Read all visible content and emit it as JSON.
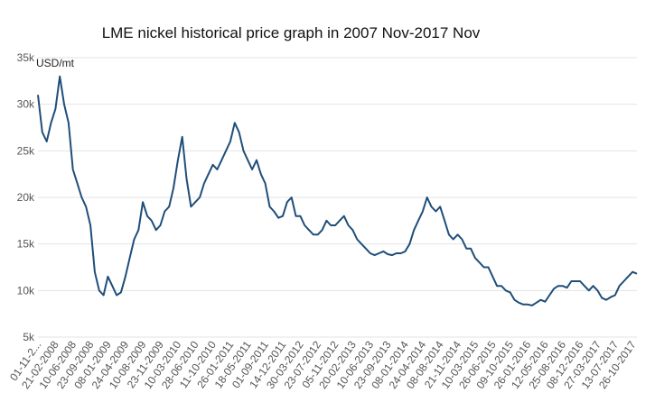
{
  "chart_data": {
    "type": "line",
    "title": "LME nickel historical price graph in 2007 Nov-2017 Nov",
    "y_label": "USD/mt",
    "categories": [
      "01-11-2...",
      null,
      null,
      null,
      "21-02-2008",
      null,
      null,
      null,
      "10-06-2008",
      null,
      null,
      null,
      "23-09-2008",
      null,
      null,
      null,
      "08-01-2009",
      null,
      null,
      null,
      "24-04-2009",
      null,
      null,
      null,
      "10-08-2009",
      null,
      null,
      null,
      "23-11-2009",
      null,
      null,
      null,
      "10-03-2010",
      null,
      null,
      null,
      "28-06-2010",
      null,
      null,
      null,
      "11-10-2010",
      null,
      null,
      null,
      "26-01-2011",
      null,
      null,
      null,
      "18-05-2011",
      null,
      null,
      null,
      "01-09-2011",
      null,
      null,
      null,
      "14-12-2011",
      null,
      null,
      null,
      "30-03-2012",
      null,
      null,
      null,
      "23-07-2012",
      null,
      null,
      null,
      "05-11-2012",
      null,
      null,
      null,
      "20-02-2013",
      null,
      null,
      null,
      "10-06-2013",
      null,
      null,
      null,
      "23-09-2013",
      null,
      null,
      null,
      "08-01-2014",
      null,
      null,
      null,
      "24-04-2014",
      null,
      null,
      null,
      "08-08-2014",
      null,
      null,
      null,
      "21-11-2014",
      null,
      null,
      null,
      "10-03-2015",
      null,
      null,
      null,
      "26-06-2015",
      null,
      null,
      null,
      "09-10-2015",
      null,
      null,
      null,
      "26-01-2016",
      null,
      null,
      null,
      "12-05-2016",
      null,
      null,
      null,
      "25-08-2016",
      null,
      null,
      null,
      "08-12-2016",
      null,
      null,
      null,
      "27-03-2017",
      null,
      null,
      null,
      "13-07-2017",
      null,
      null,
      null,
      "26-10-2017",
      null
    ],
    "series": [
      {
        "name": "Nickel",
        "color": "#1f4e79",
        "values": [
          31000,
          27000,
          26000,
          28000,
          29500,
          33000,
          30000,
          28000,
          23000,
          21500,
          20000,
          19000,
          17000,
          12000,
          10000,
          9500,
          11500,
          10500,
          9500,
          9800,
          11500,
          13500,
          15500,
          16500,
          19500,
          18000,
          17500,
          16500,
          17000,
          18500,
          19000,
          21000,
          24000,
          26500,
          22000,
          19000,
          19500,
          20000,
          21500,
          22500,
          23500,
          23000,
          24000,
          25000,
          26000,
          28000,
          27000,
          25000,
          24000,
          23000,
          24000,
          22500,
          21500,
          19000,
          18500,
          17800,
          18000,
          19500,
          20000,
          18000,
          18000,
          17000,
          16500,
          16000,
          16000,
          16500,
          17500,
          17000,
          17000,
          17500,
          18000,
          17000,
          16500,
          15500,
          15000,
          14500,
          14000,
          13800,
          14000,
          14200,
          13900,
          13800,
          14000,
          14000,
          14200,
          15000,
          16500,
          17500,
          18500,
          20000,
          19000,
          18500,
          19000,
          17500,
          16000,
          15500,
          16000,
          15500,
          14500,
          14500,
          13500,
          13000,
          12500,
          12500,
          11500,
          10500,
          10500,
          10000,
          9800,
          9000,
          8700,
          8500,
          8500,
          8400,
          8700,
          9000,
          8800,
          9500,
          10200,
          10500,
          10500,
          10300,
          11000,
          11000,
          11000,
          10500,
          10000,
          10500,
          10000,
          9200,
          9000,
          9300,
          9500,
          10500,
          11000,
          11500,
          12000,
          11800
        ]
      }
    ],
    "ylim": [
      5000,
      35000
    ],
    "yticks": [
      {
        "value": 5000,
        "label": "5k"
      },
      {
        "value": 10000,
        "label": "10k"
      },
      {
        "value": 15000,
        "label": "15k"
      },
      {
        "value": 20000,
        "label": "20k"
      },
      {
        "value": 25000,
        "label": "25k"
      },
      {
        "value": 30000,
        "label": "30k"
      },
      {
        "value": 35000,
        "label": "35k"
      }
    ],
    "grid": true
  }
}
